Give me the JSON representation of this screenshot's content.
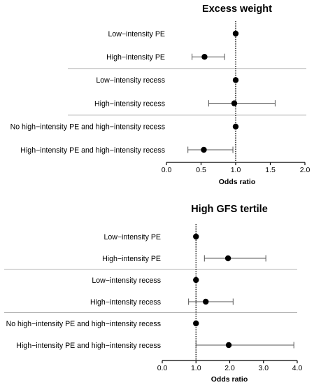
{
  "chart_data": [
    {
      "type": "forest",
      "title": "Excess weight",
      "xlabel": "Odds ratio",
      "xlim": [
        0.0,
        2.0
      ],
      "xticks": [
        "0.0",
        "0.5",
        "1.0",
        "1.5",
        "2.0"
      ],
      "reference_line": 1.0,
      "rows": [
        {
          "label": "Low−intensity PE",
          "or": 1.0,
          "lo": null,
          "hi": null
        },
        {
          "label": "High−intensity PE",
          "or": 0.55,
          "lo": 0.37,
          "hi": 0.84
        },
        {
          "label": "Low−intensity recess",
          "or": 1.0,
          "lo": null,
          "hi": null
        },
        {
          "label": "High−intensity recess",
          "or": 0.98,
          "lo": 0.61,
          "hi": 1.57
        },
        {
          "label": "No high−intensity PE and high−intensity recess",
          "or": 1.0,
          "lo": null,
          "hi": null
        },
        {
          "label": "High−intensity PE and high−intensity recess",
          "or": 0.54,
          "lo": 0.31,
          "hi": 0.96
        }
      ],
      "separators_after_rows": [
        1,
        3
      ]
    },
    {
      "type": "forest",
      "title": "High GFS tertile",
      "xlabel": "Odds ratio",
      "xlim": [
        0.0,
        4.0
      ],
      "xticks": [
        "0.0",
        "1.0",
        "2.0",
        "3.0",
        "4.0"
      ],
      "reference_line": 1.0,
      "rows": [
        {
          "label": "Low−intensity PE",
          "or": 1.0,
          "lo": null,
          "hi": null
        },
        {
          "label": "High−intensity PE",
          "or": 1.95,
          "lo": 1.25,
          "hi": 3.07
        },
        {
          "label": "Low−intensity recess",
          "or": 1.0,
          "lo": null,
          "hi": null
        },
        {
          "label": "High−intensity recess",
          "or": 1.29,
          "lo": 0.78,
          "hi": 2.1
        },
        {
          "label": "No high−intensity PE and high−intensity recess",
          "or": 1.0,
          "lo": null,
          "hi": null
        },
        {
          "label": "High−intensity PE and high−intensity recess",
          "or": 1.97,
          "lo": 1.0,
          "hi": 3.9
        }
      ],
      "separators_after_rows": [
        1,
        3
      ]
    }
  ]
}
